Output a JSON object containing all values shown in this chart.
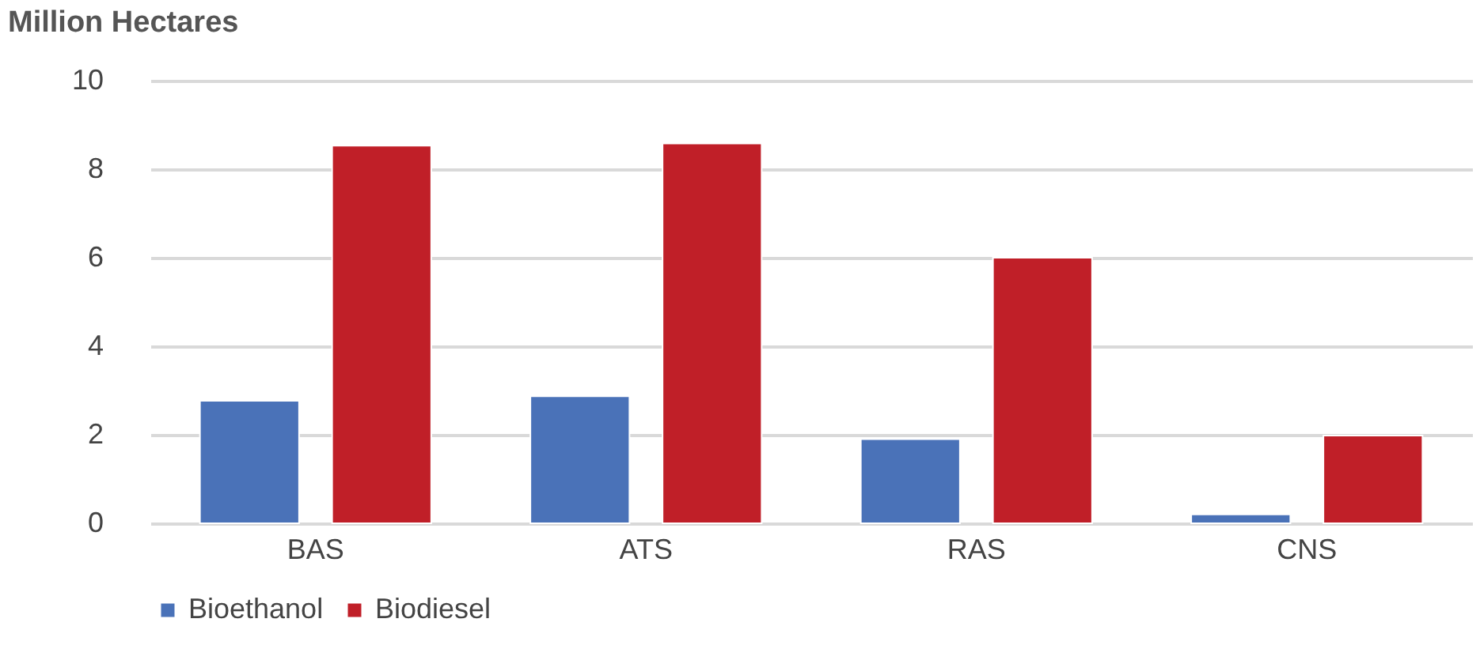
{
  "chart_data": {
    "type": "bar",
    "title": "Million Hectares",
    "categories": [
      "BAS",
      "ATS",
      "RAS",
      "CNS"
    ],
    "series": [
      {
        "name": "Bioethanol",
        "color": "#4a72b8",
        "values": [
          2.77,
          2.87,
          1.9,
          0.2
        ]
      },
      {
        "name": "Biodiesel",
        "color": "#c01f28",
        "values": [
          8.53,
          8.58,
          6.0,
          1.98
        ]
      }
    ],
    "ylim": [
      0,
      10
    ],
    "yticks": [
      0,
      2,
      4,
      6,
      8,
      10
    ],
    "grid": "y",
    "legend": "bottom"
  }
}
